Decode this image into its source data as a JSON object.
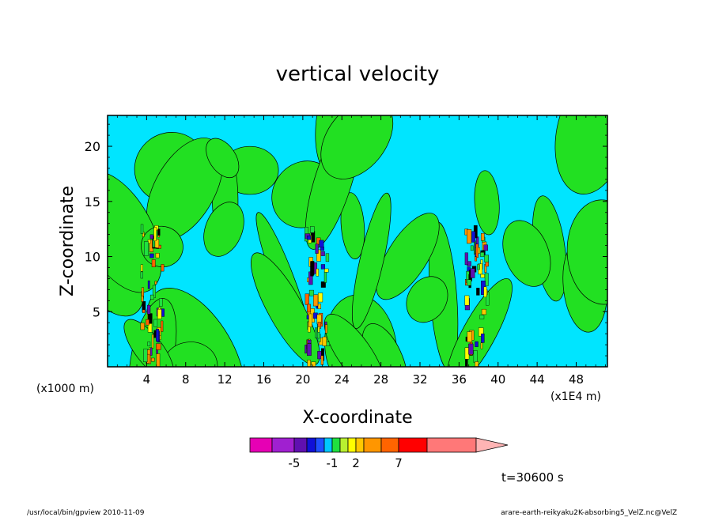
{
  "chart_data": {
    "type": "heatmap",
    "title": "vertical velocity",
    "xlabel": "X-coordinate",
    "ylabel": "Z-coordinate",
    "x_unit_left": "(x1000 m)",
    "x_unit_right": "(x1E4 m)",
    "xlim": [
      0,
      51.2
    ],
    "ylim": [
      0,
      22.8
    ],
    "x_ticks": [
      4,
      8,
      12,
      16,
      20,
      24,
      28,
      32,
      36,
      40,
      44,
      48
    ],
    "y_ticks": [
      5,
      10,
      15,
      20
    ],
    "grid": false,
    "colorbar": {
      "levels": [
        -7,
        -6,
        -5,
        -4,
        -3,
        -2,
        -1,
        0,
        1,
        2,
        3,
        5,
        7,
        9,
        12
      ],
      "colors": [
        "#e600b4",
        "#a020d0",
        "#6010b0",
        "#1010d8",
        "#1f4fff",
        "#00c8ff",
        "#20e040",
        "#b8f030",
        "#ffff00",
        "#ffc800",
        "#ff9600",
        "#ff6400",
        "#ff0000",
        "#ff7878",
        "#ffb4b4"
      ],
      "tick_labels": [
        {
          "value": -5,
          "text": "-5"
        },
        {
          "value": -1,
          "text": "-1"
        },
        {
          "value": 2,
          "text": "2"
        },
        {
          "value": 7,
          "text": "7"
        }
      ]
    },
    "updraft_columns_x": [
      4.6,
      21.4,
      37.8
    ],
    "background_color": "#00e5ff",
    "secondary_color": "#22e022"
  },
  "annotations": {
    "time": "t=30600 s",
    "footer_left": "/usr/local/bin/gpview  2010-11-09",
    "footer_right": "arare-earth-reikyaku2K-absorbing5_VelZ.nc@VelZ"
  }
}
